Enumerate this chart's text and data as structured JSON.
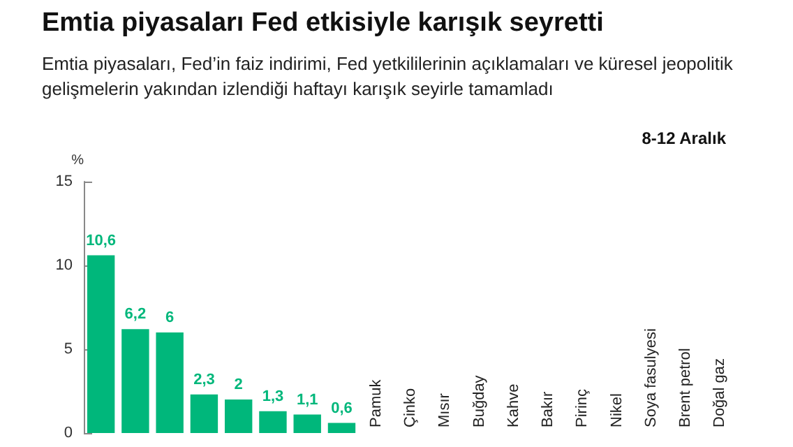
{
  "chart_data": {
    "type": "bar",
    "title": "Emtia piyasaları Fed etkisiyle karışık seyretti",
    "subtitle": "Emtia piyasaları, Fed’in faiz indirimi, Fed yetkililerinin açıklamaları ve küresel jeopolitik gelişmelerin yakından izlendiği haftayı karışık seyirle tamamladı",
    "annotations": [
      "8-12 Aralık"
    ],
    "ylabel": "%",
    "categories": [
      null,
      null,
      null,
      null,
      null,
      null,
      null,
      null,
      "Pamuk",
      "Çinko",
      "Mısır",
      "Buğday",
      "Kahve",
      "Bakır",
      "Pirinç",
      "Nikel",
      "Soya fasulyesi",
      "Brent petrol",
      "Doğal gaz"
    ],
    "values": [
      10.6,
      6.2,
      6,
      2.3,
      2,
      1.3,
      1.1,
      0.6,
      null,
      null,
      null,
      null,
      null,
      null,
      null,
      null,
      null,
      null,
      null
    ],
    "value_labels": [
      "10,6",
      "6,2",
      "6",
      "2,3",
      "2",
      "1,3",
      "1,1",
      "0,6",
      null,
      null,
      null,
      null,
      null,
      null,
      null,
      null,
      null,
      null,
      null
    ],
    "color": "#00b77b",
    "ylim": [
      0,
      15
    ],
    "yticks": [
      0,
      5,
      10,
      15
    ],
    "grid": false
  }
}
